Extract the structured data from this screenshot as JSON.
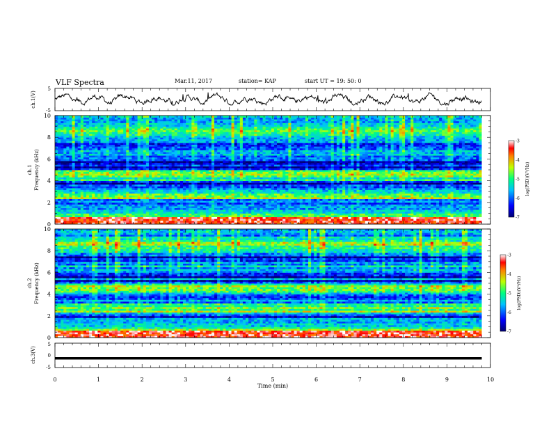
{
  "header": {
    "title": "VLF Spectra",
    "date": "Mar.11, 2017",
    "station": "station= KAP",
    "start": "start  UT =   19: 50: 0"
  },
  "chart_data": [
    {
      "type": "line",
      "panel": "ch1-waveform",
      "ylabel": "ch.1(V)",
      "ylim": [
        -5,
        5
      ],
      "yticks": [
        "5",
        "-5"
      ],
      "x_range": [
        0,
        9.8
      ],
      "y_mean": 0,
      "y_amplitude": 1.2
    },
    {
      "type": "heatmap",
      "panel": "ch1-spectrogram",
      "ylabel": "ch.1\nFrequency  (kHz)",
      "ylim": [
        0,
        10
      ],
      "yticks": [
        "0",
        "2",
        "4",
        "6",
        "8",
        "10"
      ],
      "colorbar": {
        "label": "log(PSD)(V²/Hz)",
        "ticks": [
          "-3",
          "-4",
          "-5",
          "-6",
          "-7"
        ],
        "range": [
          -7,
          -3
        ]
      }
    },
    {
      "type": "heatmap",
      "panel": "ch2-spectrogram",
      "ylabel": "ch.2\nFrequency  (kHz)",
      "ylim": [
        0,
        10
      ],
      "yticks": [
        "0",
        "2",
        "4",
        "6",
        "8",
        "10"
      ],
      "colorbar": {
        "label": "log(PSD)(V²/Hz)",
        "ticks": [
          "-3",
          "-4",
          "-5",
          "-6",
          "-7"
        ],
        "range": [
          -7,
          -3
        ]
      }
    },
    {
      "type": "line",
      "panel": "ch3-waveform",
      "ylabel": "ch.3(V)",
      "ylim": [
        -5,
        5
      ],
      "yticks": [
        "5",
        "0",
        "-5"
      ],
      "x_range": [
        0,
        9.8
      ],
      "y_value": -1.2
    }
  ],
  "xaxis": {
    "label": "Time  (min)",
    "ticks": [
      "0",
      "1",
      "2",
      "3",
      "4",
      "5",
      "6",
      "7",
      "8",
      "9",
      "10"
    ],
    "xlim": [
      0,
      10
    ]
  }
}
